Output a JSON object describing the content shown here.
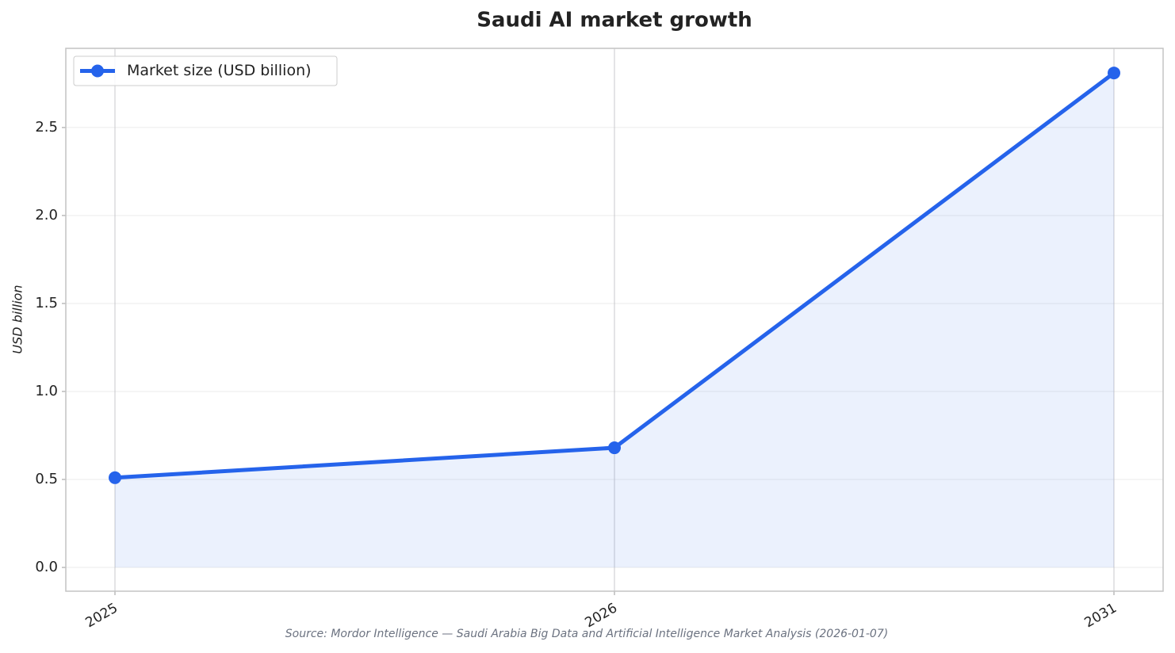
{
  "chart_data": {
    "type": "line",
    "title": "Saudi AI market growth",
    "ylabel": "USD billion",
    "source": "Source: Mordor Intelligence — Saudi Arabia Big Data and Artificial Intelligence Market Analysis (2026-01-07)",
    "categories": [
      "2025",
      "2026",
      "2031"
    ],
    "series": [
      {
        "name": "Market size (USD billion)",
        "color": "#2563eb",
        "values": [
          0.51,
          0.68,
          2.81
        ]
      }
    ],
    "ylim": [
      -0.135,
      2.95
    ],
    "yticks": [
      {
        "value": 0,
        "label": "0.0"
      },
      0.5,
      {
        "value": 1,
        "label": "1.0"
      },
      1.5,
      {
        "value": 2,
        "label": "2.0"
      },
      2.5
    ],
    "grid": true,
    "area_fill": true,
    "legend": "upper left"
  }
}
